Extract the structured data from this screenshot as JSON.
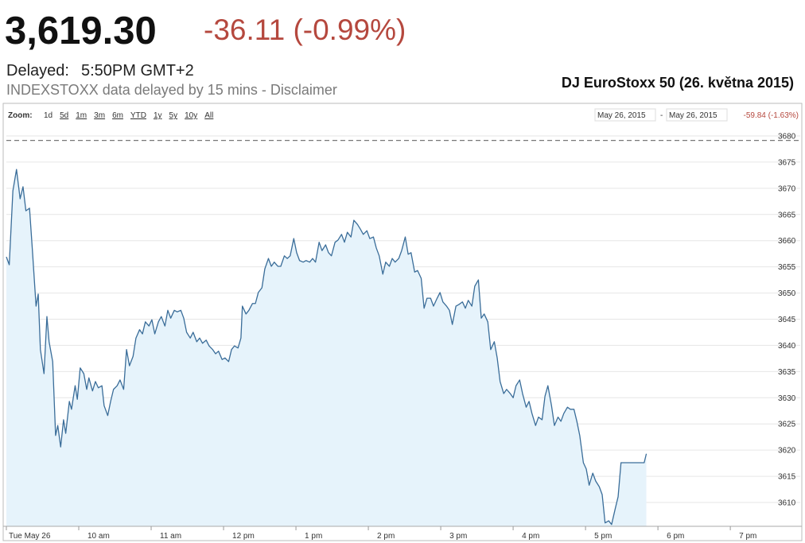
{
  "header": {
    "price": "3,619.30",
    "change": "-36.11 (-0.99%)",
    "delayed_label": "Delayed:",
    "delayed_time": "5:50PM GMT+2",
    "disclaimer": "INDEXSTOXX data delayed by 15 mins - Disclaimer"
  },
  "caption": "DJ EuroStoxx 50 (26. května 2015)",
  "toolbar": {
    "zoom_label": "Zoom:",
    "zoom_options": [
      "1d",
      "5d",
      "1m",
      "3m",
      "6m",
      "YTD",
      "1y",
      "5y",
      "10y",
      "All"
    ],
    "zoom_active": "1d",
    "date_from": "May 26, 2015",
    "date_separator": "-",
    "date_to": "May 26, 2015",
    "range_change": "-59.84 (-1.63%)"
  },
  "chart_data": {
    "type": "area-line",
    "x": [
      9.0,
      9.04,
      9.09,
      9.14,
      9.19,
      9.23,
      9.27,
      9.32,
      9.36,
      9.41,
      9.44,
      9.47,
      9.52,
      9.56,
      9.59,
      9.64,
      9.68,
      9.71,
      9.75,
      9.79,
      9.82,
      9.87,
      9.9,
      9.95,
      9.98,
      10.02,
      10.07,
      10.11,
      10.14,
      10.19,
      10.23,
      10.27,
      10.32,
      10.35,
      10.4,
      10.44,
      10.48,
      10.53,
      10.57,
      10.62,
      10.66,
      10.7,
      10.75,
      10.79,
      10.84,
      10.88,
      10.92,
      10.97,
      11.01,
      11.05,
      11.1,
      11.14,
      11.19,
      11.23,
      11.27,
      11.32,
      11.36,
      11.41,
      11.45,
      11.49,
      11.54,
      11.58,
      11.63,
      11.67,
      11.71,
      11.76,
      11.8,
      11.85,
      11.89,
      11.93,
      11.98,
      12.02,
      12.07,
      12.11,
      12.15,
      12.2,
      12.24,
      12.26,
      12.31,
      12.35,
      12.4,
      12.44,
      12.48,
      12.53,
      12.57,
      12.62,
      12.66,
      12.7,
      12.75,
      12.79,
      12.84,
      12.88,
      12.92,
      12.97,
      13.01,
      13.05,
      13.1,
      13.14,
      13.19,
      13.23,
      13.27,
      13.32,
      13.36,
      13.41,
      13.45,
      13.49,
      13.54,
      13.58,
      13.63,
      13.67,
      13.71,
      13.76,
      13.8,
      13.85,
      13.89,
      13.93,
      13.98,
      14.02,
      14.07,
      14.11,
      14.15,
      14.2,
      14.24,
      14.29,
      14.33,
      14.37,
      14.42,
      14.46,
      14.51,
      14.55,
      14.59,
      14.64,
      14.68,
      14.73,
      14.77,
      14.81,
      14.86,
      14.9,
      14.95,
      14.99,
      15.03,
      15.08,
      15.12,
      15.16,
      15.21,
      15.25,
      15.3,
      15.34,
      15.38,
      15.43,
      15.47,
      15.52,
      15.56,
      15.6,
      15.65,
      15.69,
      15.74,
      15.78,
      15.82,
      15.87,
      15.91,
      15.96,
      16.0,
      16.04,
      16.09,
      16.13,
      16.18,
      16.22,
      16.26,
      16.31,
      16.35,
      16.4,
      16.44,
      16.48,
      16.53,
      16.57,
      16.62,
      16.66,
      16.7,
      16.75,
      16.79,
      16.84,
      16.88,
      16.92,
      16.97,
      17.01,
      17.05,
      17.1,
      17.14,
      17.19,
      17.23,
      17.27,
      17.32,
      17.36,
      17.41,
      17.45,
      17.49,
      17.54,
      17.58,
      17.76,
      17.81,
      17.84
    ],
    "series": [
      {
        "color": "#3a6d99",
        "fill": "#e6f3fb",
        "values": [
          3656.9,
          3655.4,
          3669.5,
          3673.6,
          3668.0,
          3670.3,
          3665.7,
          3666.2,
          3658.1,
          3647.5,
          3649.8,
          3639.2,
          3634.6,
          3645.5,
          3640.7,
          3636.9,
          3622.8,
          3624.7,
          3620.6,
          3625.8,
          3623.2,
          3629.3,
          3627.8,
          3632.3,
          3629.7,
          3635.7,
          3634.6,
          3631.6,
          3633.8,
          3631.3,
          3633.1,
          3631.9,
          3632.3,
          3628.5,
          3626.6,
          3629.3,
          3631.6,
          3632.3,
          3633.4,
          3631.6,
          3639.2,
          3636.1,
          3637.9,
          3641.4,
          3643.0,
          3642.2,
          3644.5,
          3643.7,
          3644.9,
          3642.2,
          3644.5,
          3645.5,
          3643.7,
          3646.7,
          3645.2,
          3646.7,
          3646.4,
          3646.7,
          3645.2,
          3642.5,
          3641.4,
          3642.5,
          3640.7,
          3641.4,
          3640.4,
          3641.0,
          3639.9,
          3639.2,
          3638.4,
          3638.9,
          3637.3,
          3637.6,
          3636.9,
          3639.2,
          3639.9,
          3639.5,
          3641.4,
          3647.5,
          3646.0,
          3646.7,
          3648.0,
          3648.0,
          3650.1,
          3651.0,
          3654.6,
          3656.6,
          3655.1,
          3655.9,
          3655.1,
          3655.1,
          3657.1,
          3656.6,
          3657.1,
          3660.4,
          3657.7,
          3656.2,
          3655.9,
          3656.2,
          3655.9,
          3656.6,
          3655.9,
          3659.7,
          3658.1,
          3659.2,
          3657.7,
          3657.1,
          3659.7,
          3660.1,
          3661.2,
          3659.7,
          3661.6,
          3660.7,
          3663.9,
          3663.1,
          3662.2,
          3661.2,
          3661.9,
          3660.4,
          3660.7,
          3658.6,
          3657.1,
          3653.6,
          3655.9,
          3655.1,
          3656.6,
          3655.9,
          3656.6,
          3658.1,
          3660.7,
          3657.4,
          3657.7,
          3654.0,
          3654.3,
          3652.8,
          3647.1,
          3649.0,
          3649.0,
          3647.5,
          3649.0,
          3650.1,
          3648.3,
          3647.5,
          3646.7,
          3644.0,
          3647.5,
          3647.8,
          3648.3,
          3647.1,
          3648.6,
          3647.5,
          3651.3,
          3652.5,
          3645.2,
          3646.0,
          3644.5,
          3639.2,
          3640.7,
          3637.6,
          3633.1,
          3630.8,
          3631.6,
          3630.8,
          3630.0,
          3632.3,
          3633.4,
          3630.8,
          3628.2,
          3629.3,
          3627.0,
          3624.7,
          3626.3,
          3625.8,
          3630.3,
          3632.3,
          3628.5,
          3624.7,
          3626.3,
          3625.5,
          3627.0,
          3628.2,
          3627.8,
          3627.8,
          3625.5,
          3622.8,
          3617.6,
          3616.4,
          3613.3,
          3615.6,
          3614.1,
          3613.0,
          3611.5,
          3606.1,
          3606.5,
          3605.8,
          3608.8,
          3611.1,
          3617.6,
          3617.6,
          3617.6,
          3617.6,
          3617.6,
          3619.3
        ]
      }
    ],
    "reference_line": 3679.14,
    "xlim": [
      9,
      19.57
    ],
    "xticks": [
      {
        "value": 9,
        "label": "Tue May 26"
      },
      {
        "value": 10,
        "label": "10 am"
      },
      {
        "value": 11,
        "label": "11 am"
      },
      {
        "value": 12,
        "label": "12 pm"
      },
      {
        "value": 13,
        "label": "1 pm"
      },
      {
        "value": 14,
        "label": "2 pm"
      },
      {
        "value": 15,
        "label": "3 pm"
      },
      {
        "value": 16,
        "label": "4 pm"
      },
      {
        "value": 17,
        "label": "5 pm"
      },
      {
        "value": 18,
        "label": "6 pm"
      },
      {
        "value": 19,
        "label": "7 pm"
      }
    ],
    "ylim": [
      3605.45,
      3681.97
    ],
    "yticks": [
      3610,
      3615,
      3620,
      3625,
      3630,
      3635,
      3640,
      3645,
      3650,
      3655,
      3660,
      3665,
      3670,
      3675,
      3680
    ],
    "grid": true
  }
}
